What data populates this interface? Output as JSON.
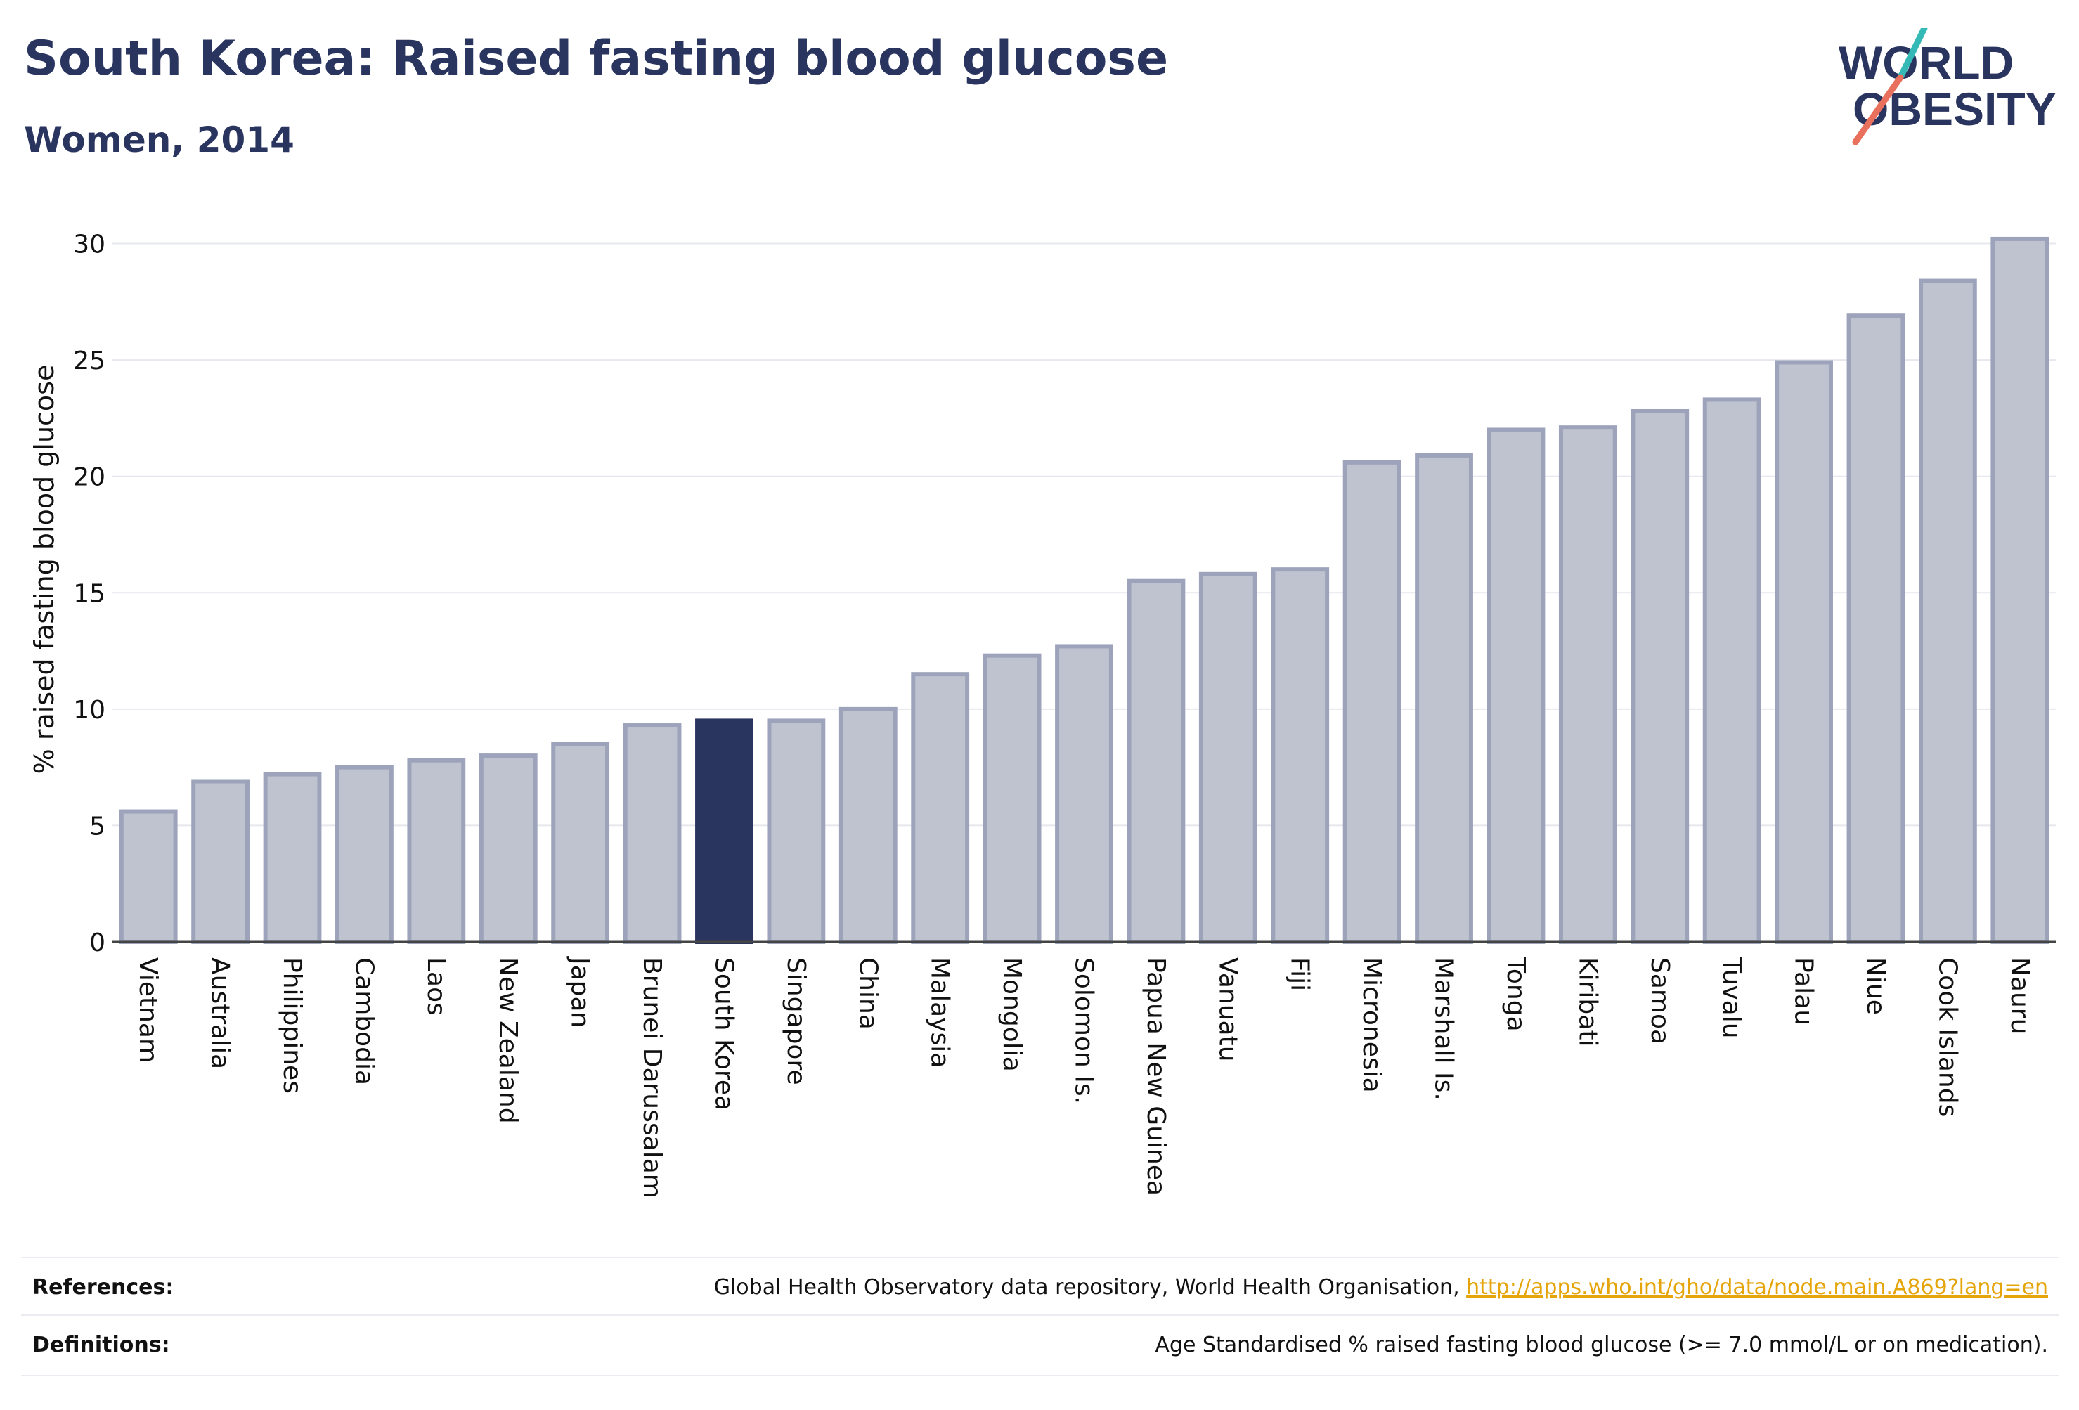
{
  "header": {
    "title": "South Korea: Raised fasting blood glucose",
    "subtitle": "Women, 2014"
  },
  "logo": {
    "line1": "WORLD",
    "line2": "OBESITY"
  },
  "colors": {
    "bar": "#bfc3d0",
    "bar_border": "#9da3ba",
    "highlight": "#2a355f",
    "text": "#2a355f",
    "grid": "#e6e8ee",
    "link": "#e5a50a"
  },
  "chart_data": {
    "type": "bar",
    "ylabel": "% raised fasting blood glucose",
    "xlabel": "",
    "ylim": [
      0,
      30.5
    ],
    "yticks": [
      0,
      5,
      10,
      15,
      20,
      25,
      30
    ],
    "highlight": "South Korea",
    "categories": [
      "Vietnam",
      "Australia",
      "Philippines",
      "Cambodia",
      "Laos",
      "New Zealand",
      "Japan",
      "Brunei Darussalam",
      "South Korea",
      "Singapore",
      "China",
      "Malaysia",
      "Mongolia",
      "Solomon Is.",
      "Papua New Guinea",
      "Vanuatu",
      "Fiji",
      "Micronesia",
      "Marshall Is.",
      "Tonga",
      "Kiribati",
      "Samoa",
      "Tuvalu",
      "Palau",
      "Niue",
      "Cook Islands",
      "Nauru"
    ],
    "values": [
      5.6,
      6.9,
      7.2,
      7.5,
      7.8,
      8.0,
      8.5,
      9.3,
      9.5,
      9.5,
      10.0,
      11.5,
      12.3,
      12.7,
      15.5,
      15.8,
      16.0,
      20.6,
      20.9,
      22.0,
      22.1,
      22.8,
      23.3,
      24.9,
      26.9,
      28.4,
      30.2
    ],
    "grid": true
  },
  "footer": {
    "references_label": "References:",
    "references_text": "Global Health Observatory data repository, World Health Organisation, ",
    "references_link": "http://apps.who.int/gho/data/node.main.A869?lang=en",
    "definitions_label": "Definitions:",
    "definitions_text": "Age Standardised % raised fasting blood glucose (>= 7.0 mmol/L or on medication)."
  }
}
